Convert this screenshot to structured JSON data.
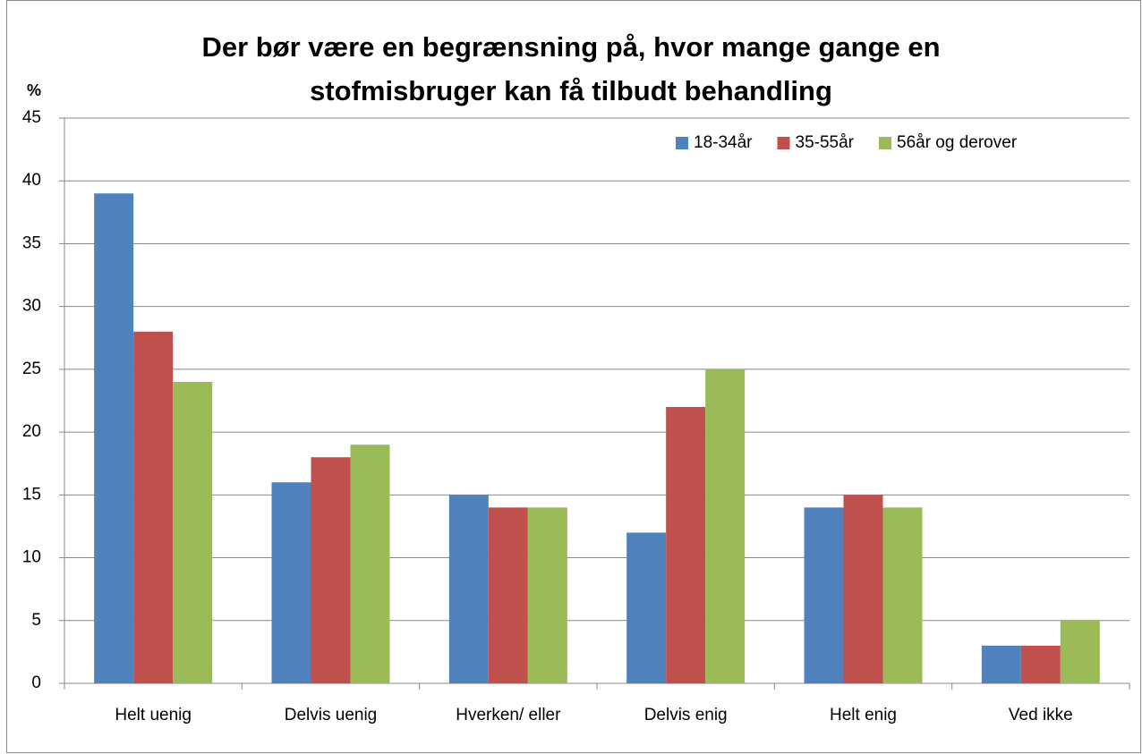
{
  "chart_data": {
    "type": "bar",
    "title": [
      "Der bør være en begrænsning på, hvor mange gange en",
      "stofmisbruger kan få tilbudt behandling"
    ],
    "ylabel": "%",
    "categories": [
      "Helt uenig",
      "Delvis uenig",
      "Hverken/ eller",
      "Delvis enig",
      "Helt enig",
      "Ved ikke"
    ],
    "series": [
      {
        "name": "18-34år",
        "color": "#4f81bd",
        "values": [
          39,
          16,
          15,
          12,
          14,
          3
        ]
      },
      {
        "name": "35-55år",
        "color": "#c0504d",
        "values": [
          28,
          18,
          14,
          22,
          15,
          3
        ]
      },
      {
        "name": "56år og derover",
        "color": "#9bbb59",
        "values": [
          24,
          19,
          14,
          25,
          14,
          5
        ]
      }
    ],
    "ylim": [
      0,
      45
    ],
    "yticks": [
      0,
      5,
      10,
      15,
      20,
      25,
      30,
      35,
      40,
      45
    ],
    "grid": true,
    "legend": "top-right"
  }
}
